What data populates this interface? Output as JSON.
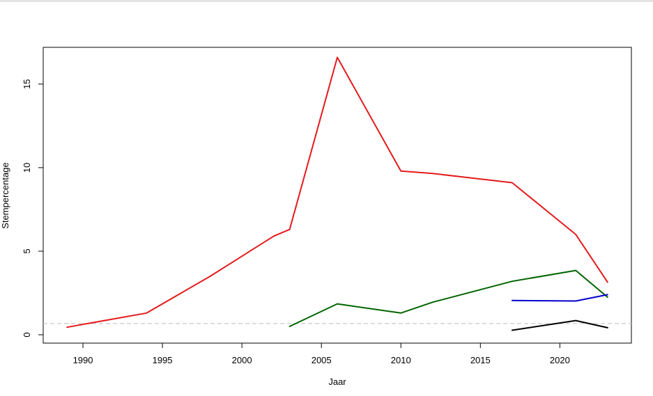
{
  "chart_data": {
    "type": "line",
    "title": "",
    "xlabel": "Jaar",
    "ylabel": "Stempercentage",
    "xlim": [
      1987.5,
      2024.5
    ],
    "ylim": [
      -0.5,
      17.2
    ],
    "x_ticks": [
      1990,
      1995,
      2000,
      2005,
      2010,
      2015,
      2020
    ],
    "y_ticks": [
      0,
      5,
      10,
      15
    ],
    "grid": false,
    "legend": "none",
    "reference_lines": [
      {
        "y": 0.67,
        "style": "dashed",
        "color": "#c8c8c8"
      }
    ],
    "series": [
      {
        "color": "#e41a1c",
        "points": [
          [
            1989,
            0.45
          ],
          [
            1994,
            1.3
          ],
          [
            1998,
            3.5
          ],
          [
            2002,
            5.9
          ],
          [
            2003,
            6.3
          ],
          [
            2006,
            16.6
          ],
          [
            2010,
            9.8
          ],
          [
            2012,
            9.65
          ],
          [
            2017,
            9.1
          ],
          [
            2021,
            6.0
          ],
          [
            2023,
            3.15
          ]
        ]
      },
      {
        "color": "#006400",
        "points": [
          [
            2003,
            0.5
          ],
          [
            2006,
            1.85
          ],
          [
            2010,
            1.3
          ],
          [
            2012,
            1.95
          ],
          [
            2017,
            3.2
          ],
          [
            2021,
            3.85
          ],
          [
            2023,
            2.25
          ]
        ]
      },
      {
        "color": "#0000cc",
        "points": [
          [
            2017,
            2.05
          ],
          [
            2021,
            2.02
          ],
          [
            2023,
            2.4
          ]
        ]
      },
      {
        "color": "#000000",
        "points": [
          [
            2017,
            0.27
          ],
          [
            2021,
            0.85
          ],
          [
            2023,
            0.42
          ]
        ]
      }
    ]
  }
}
